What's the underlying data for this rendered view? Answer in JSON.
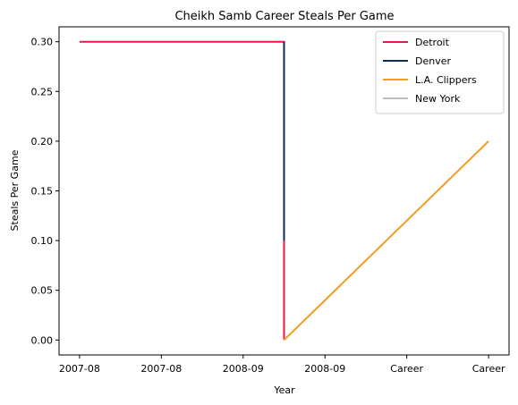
{
  "chart_data": {
    "type": "line",
    "title": "Cheikh Samb Career Steals Per Game",
    "xlabel": "Year",
    "ylabel": "Steals Per Game",
    "x_tick_labels": [
      "2007-08",
      "2007-08",
      "2008-09",
      "2008-09",
      "Career",
      "Career"
    ],
    "x_range": [
      -0.25,
      5.25
    ],
    "ylim": [
      -0.015,
      0.315
    ],
    "y_ticks": [
      0.0,
      0.05,
      0.1,
      0.15,
      0.2,
      0.25,
      0.3
    ],
    "y_tick_labels": [
      "0.00",
      "0.05",
      "0.10",
      "0.15",
      "0.20",
      "0.25",
      "0.30"
    ],
    "grid": false,
    "legend_position": "top-right",
    "series": [
      {
        "name": "Detroit",
        "color": "#e8194f",
        "points": [
          [
            0,
            0.3
          ],
          [
            2.5,
            0.3
          ],
          [
            2.5,
            0.1
          ],
          [
            2.5,
            0.0
          ]
        ]
      },
      {
        "name": "Denver",
        "color": "#0b2c55",
        "points": [
          [
            2.5,
            0.3
          ],
          [
            2.5,
            0.1
          ]
        ]
      },
      {
        "name": "L.A. Clippers",
        "color": "#f39c25",
        "points": [
          [
            2.5,
            0.0
          ],
          [
            5,
            0.2
          ]
        ]
      },
      {
        "name": "New York",
        "color": "#bdbdbd",
        "points": []
      }
    ]
  }
}
